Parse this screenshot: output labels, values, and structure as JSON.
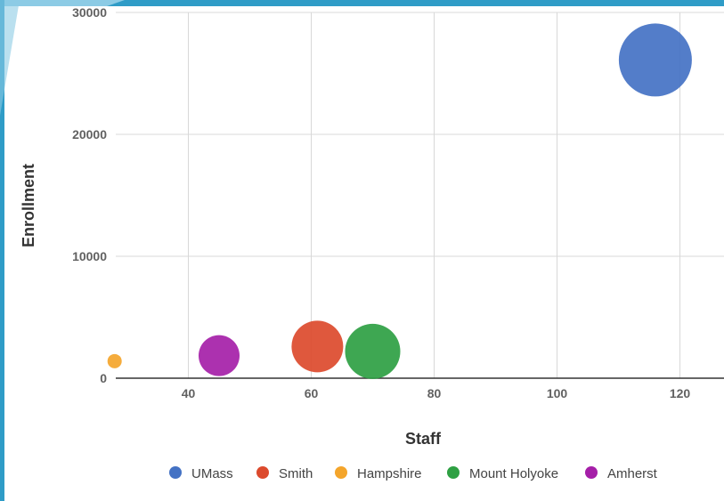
{
  "chart_data": {
    "type": "scatter",
    "subtype": "bubble",
    "title": "",
    "xlabel": "Staff",
    "ylabel": "Enrollment",
    "xlim": [
      25,
      125
    ],
    "ylim": [
      0,
      30000
    ],
    "xticks": [
      40,
      60,
      80,
      100,
      120
    ],
    "yticks": [
      0,
      10000,
      20000,
      30000
    ],
    "grid": true,
    "legend_position": "bottom",
    "series": [
      {
        "name": "UMass",
        "x": 116,
        "y": 26100,
        "color": "#4472C4"
      },
      {
        "name": "Smith",
        "x": 61,
        "y": 2600,
        "color": "#DC4A2D"
      },
      {
        "name": "Hampshire",
        "x": 28,
        "y": 1400,
        "color": "#F4A52B"
      },
      {
        "name": "Mount Holyoke",
        "x": 70,
        "y": 2200,
        "color": "#2EA043"
      },
      {
        "name": "Amherst",
        "x": 45,
        "y": 1850,
        "color": "#A51FA8"
      }
    ]
  },
  "frame_colors": {
    "accent": "#2F9CC7",
    "accent_light": "#8CCBE5"
  }
}
